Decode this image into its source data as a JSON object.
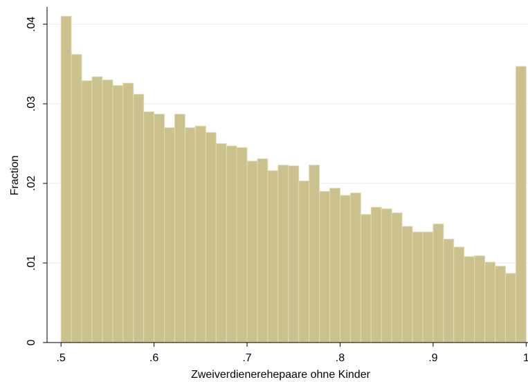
{
  "chart_data": {
    "type": "histogram",
    "xlabel": "Zweiverdienerehepaare ohne Kinder",
    "ylabel": "Fraction",
    "bins": [
      0.5,
      0.5111,
      0.5222,
      0.5333,
      0.5444,
      0.5556,
      0.5667,
      0.5778,
      0.5889,
      0.6,
      0.6111,
      0.6222,
      0.6333,
      0.6444,
      0.6556,
      0.6667,
      0.6778,
      0.6889,
      0.7,
      0.7111,
      0.7222,
      0.7333,
      0.7444,
      0.7556,
      0.7667,
      0.7778,
      0.7889,
      0.8,
      0.8111,
      0.8222,
      0.8333,
      0.8444,
      0.8556,
      0.8667,
      0.8778,
      0.8889,
      0.9,
      0.9111,
      0.9222,
      0.9333,
      0.9444,
      0.9556,
      0.9667,
      0.9778,
      0.9889,
      1
    ],
    "values": [
      0.041,
      0.0362,
      0.0329,
      0.0334,
      0.033,
      0.0323,
      0.0326,
      0.0312,
      0.029,
      0.0287,
      0.027,
      0.0287,
      0.027,
      0.0272,
      0.0264,
      0.025,
      0.0247,
      0.0245,
      0.0228,
      0.0231,
      0.0216,
      0.0223,
      0.0222,
      0.0203,
      0.0223,
      0.019,
      0.0194,
      0.0185,
      0.0188,
      0.0161,
      0.017,
      0.0168,
      0.0163,
      0.0146,
      0.0139,
      0.0139,
      0.0149,
      0.013,
      0.012,
      0.0108,
      0.0109,
      0.0101,
      0.0096,
      0.0087,
      0.0347
    ],
    "color": "#cbc18c",
    "edge_color": "#e2dbb4",
    "xlim": [
      0.485,
      1.002
    ],
    "ylim": [
      0,
      0.042
    ],
    "xticks": [
      {
        "value": 0.5,
        "label": ".5"
      },
      {
        "value": 0.6,
        "label": ".6"
      },
      {
        "value": 0.7,
        "label": ".7"
      },
      {
        "value": 0.8,
        "label": ".8"
      },
      {
        "value": 0.9,
        "label": ".9"
      },
      1
    ],
    "yticks": [
      0,
      {
        "value": 0.01,
        "label": ".01"
      },
      {
        "value": 0.02,
        "label": ".02"
      },
      {
        "value": 0.03,
        "label": ".03"
      },
      {
        "value": 0.04,
        "label": ".04"
      }
    ],
    "grid": true
  }
}
